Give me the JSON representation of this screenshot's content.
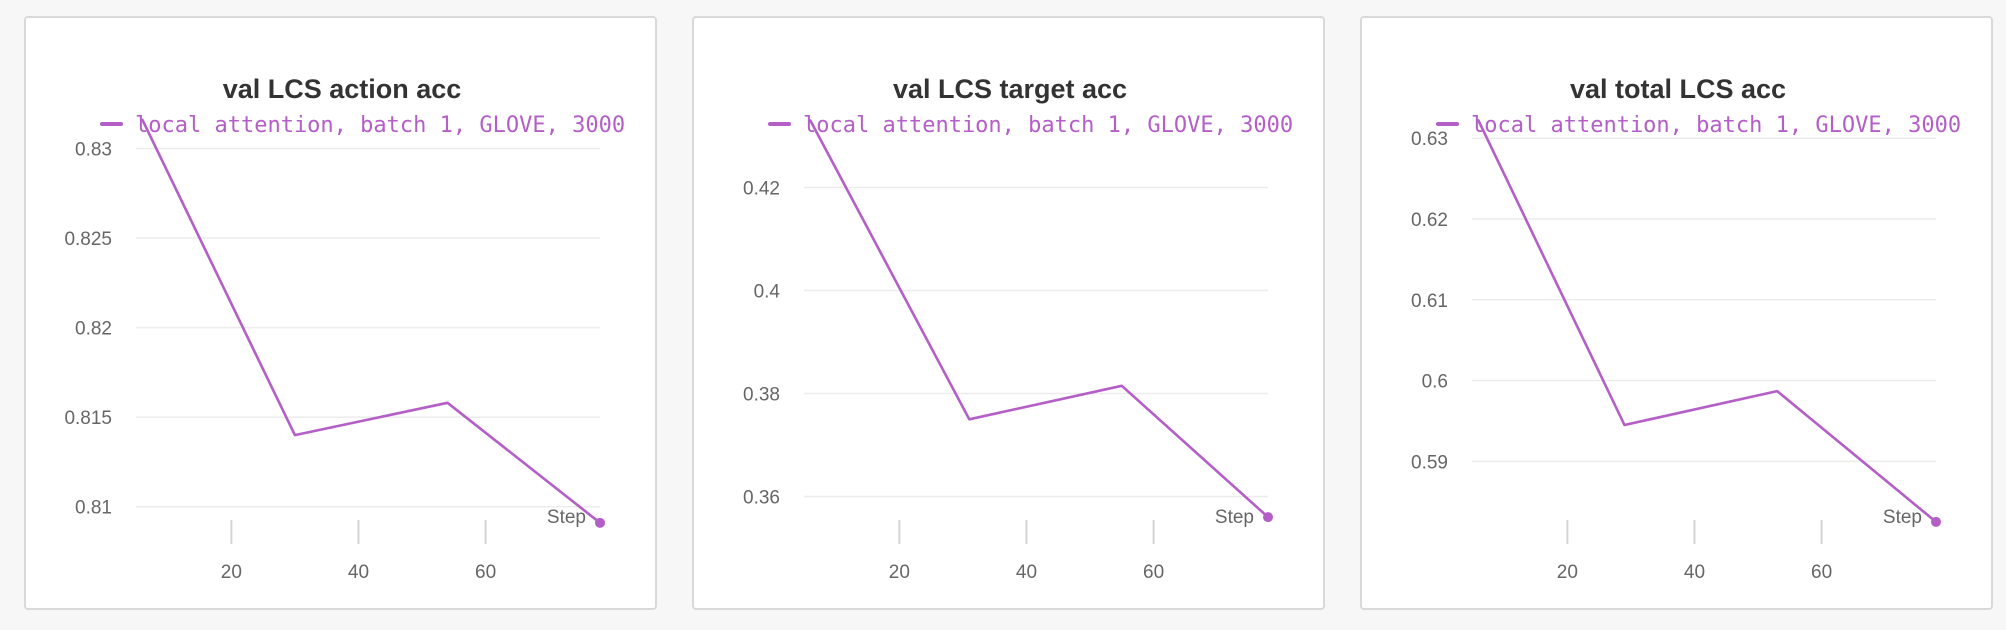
{
  "theme": {
    "series_color": "#b45ec7"
  },
  "chart_data": [
    {
      "type": "line",
      "title": "val LCS action acc",
      "xlabel": "Step",
      "ylabel": "",
      "xlim": [
        5,
        78
      ],
      "ylim": [
        0.8087,
        0.8317
      ],
      "xticks": [
        20,
        40,
        60
      ],
      "yticks": [
        0.81,
        0.815,
        0.82,
        0.825,
        0.83
      ],
      "ytick_labels": [
        "0.81",
        "0.815",
        "0.82",
        "0.825",
        "0.83"
      ],
      "grid": true,
      "legend_position": "top",
      "series": [
        {
          "name": "local attention, batch 1, GLOVE, 3000",
          "x": [
            6,
            30,
            54,
            78
          ],
          "y": [
            0.8316,
            0.814,
            0.8158,
            0.8091
          ]
        }
      ]
    },
    {
      "type": "line",
      "title": "val LCS target acc",
      "xlabel": "Step",
      "ylabel": "",
      "xlim": [
        5,
        78
      ],
      "ylim": [
        0.3535,
        0.4335
      ],
      "xticks": [
        20,
        40,
        60
      ],
      "yticks": [
        0.36,
        0.38,
        0.4,
        0.42
      ],
      "ytick_labels": [
        "0.36",
        "0.38",
        "0.4",
        "0.42"
      ],
      "grid": true,
      "legend_position": "top",
      "series": [
        {
          "name": "local attention, batch 1, GLOVE, 3000",
          "x": [
            6,
            31,
            55,
            78
          ],
          "y": [
            0.433,
            0.375,
            0.3815,
            0.356
          ]
        }
      ]
    },
    {
      "type": "line",
      "title": "val total LCS acc",
      "xlabel": "Step",
      "ylabel": "",
      "xlim": [
        5,
        78
      ],
      "ylim": [
        0.5815,
        0.6325
      ],
      "xticks": [
        20,
        40,
        60
      ],
      "yticks": [
        0.59,
        0.6,
        0.61,
        0.62,
        0.63
      ],
      "ytick_labels": [
        "0.59",
        "0.6",
        "0.61",
        "0.62",
        "0.63"
      ],
      "grid": true,
      "legend_position": "top",
      "series": [
        {
          "name": "local attention, batch 1, GLOVE, 3000",
          "x": [
            6,
            29,
            53,
            78
          ],
          "y": [
            0.6322,
            0.5945,
            0.5987,
            0.5825
          ]
        }
      ]
    }
  ]
}
